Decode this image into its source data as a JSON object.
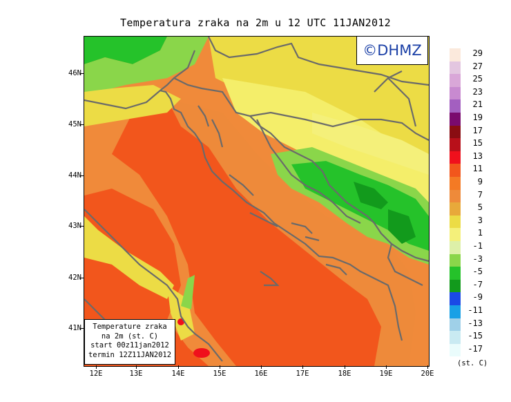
{
  "title": "Temperatura zraka na 2m u 12 UTC 11JAN2012",
  "copyright": "©DHMZ",
  "info_box": {
    "line1": "Temperature zraka",
    "line2": "na 2m (st. C)",
    "line3": "start 00z11jan2012",
    "line4": "termin 12Z11JAN2012"
  },
  "y_axis": [
    "46N",
    "45N",
    "44N",
    "43N",
    "42N",
    "41N"
  ],
  "x_axis": [
    "12E",
    "13E",
    "14E",
    "15E",
    "16E",
    "17E",
    "18E",
    "19E",
    "20E"
  ],
  "legend": {
    "labels": [
      "29",
      "27",
      "25",
      "23",
      "21",
      "19",
      "17",
      "15",
      "13",
      "11",
      "9",
      "7",
      "5",
      "3",
      "1",
      "-1",
      "-3",
      "-5",
      "-7",
      "-9",
      "-11",
      "-13",
      "-15",
      "-17"
    ],
    "colors": [
      "#fbe9dc",
      "#e3c6e0",
      "#d9a7d8",
      "#c88ad0",
      "#a35fc0",
      "#7a0a6e",
      "#8a0d12",
      "#b8101a",
      "#f0101c",
      "#f2561c",
      "#f47a24",
      "#ee8a3a",
      "#e8a93a",
      "#ecdc45",
      "#f4f07a",
      "#ddf0a8",
      "#8ad64a",
      "#25c22a",
      "#129a1c",
      "#1a4ae6",
      "#18a0e6",
      "#9fd0e8",
      "#c9eaf2",
      "#eafcfc"
    ]
  },
  "unit": "(st. C)"
}
